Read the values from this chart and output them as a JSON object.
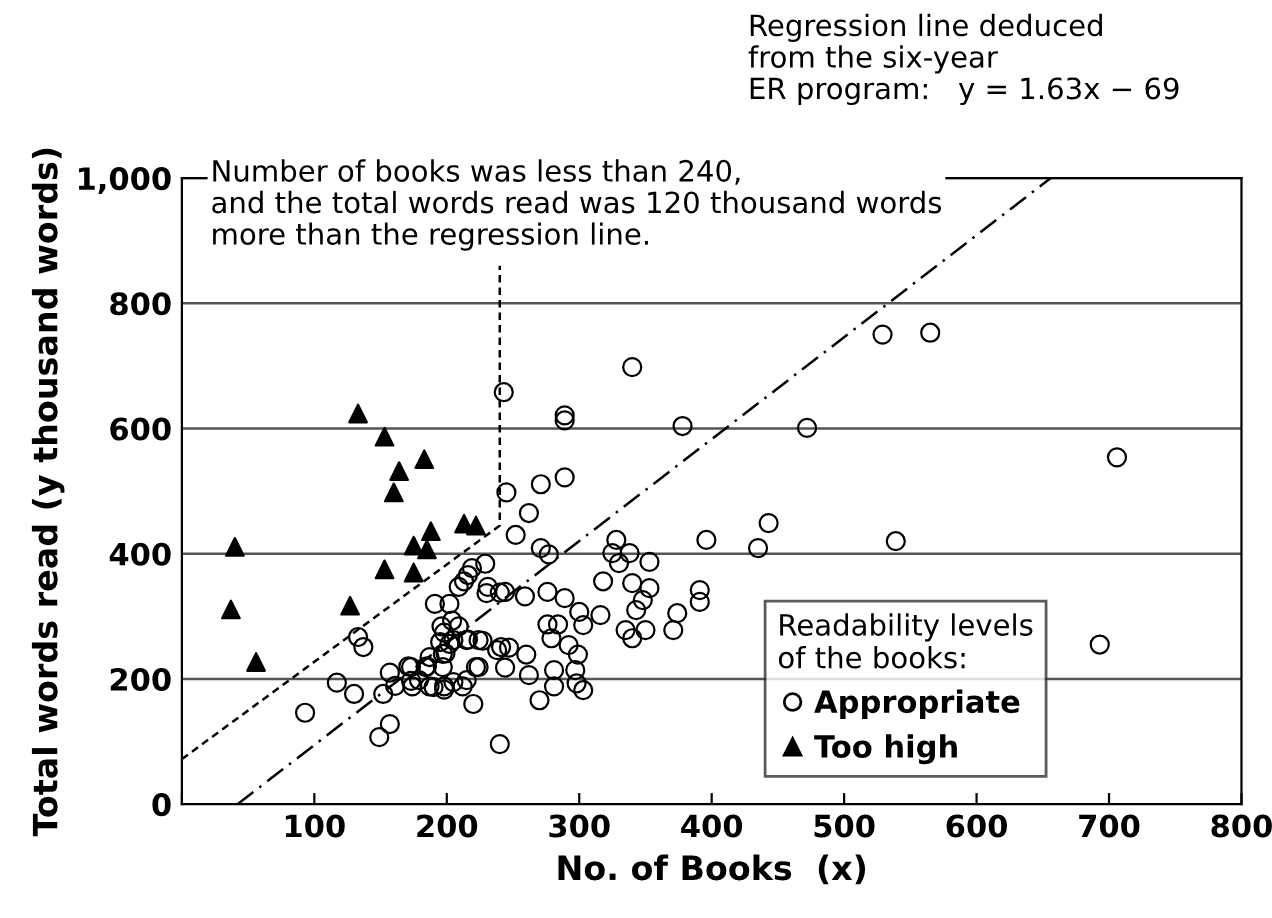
{
  "chart_data": {
    "type": "scatter",
    "xlabel": "No. of Books  (x)",
    "ylabel": "Total words read (y thousand words)",
    "legend_title": "Readability levels\nof the books:",
    "legend": "bottom right",
    "grid": "y",
    "xlim": [
      0,
      800
    ],
    "ylim": [
      0,
      1000
    ],
    "xticks": [
      {
        "value": 0,
        "label": null
      },
      100,
      200,
      300,
      400,
      500,
      600,
      700,
      800
    ],
    "yticks": [
      0,
      200,
      400,
      600,
      800,
      {
        "value": 1000,
        "label": "1,000"
      }
    ],
    "annotations": [
      "Number of books was less than 240,\nand the total words read was 120 thousand words\nmore than the regression line.",
      "Regression line deduced\nfrom the six-year\nER program:   y = 1.63x − 69"
    ],
    "series": [
      {
        "name": "Appropriate",
        "color": "#000000",
        "marker": "circle",
        "x": [
          93,
          117,
          130,
          133,
          137,
          149,
          157,
          152,
          157,
          161,
          173,
          173,
          184,
          190,
          187,
          197,
          198,
          205,
          197,
          195,
          202,
          198,
          204,
          191,
          202,
          209,
          216,
          213,
          219,
          229,
          231,
          227,
          216,
          224,
          220,
          240,
          240,
          241,
          243,
          245,
          340,
          289,
          289,
          378,
          472,
          271,
          289,
          262,
          252,
          271,
          277,
          396,
          443,
          435,
          328,
          325,
          338,
          353,
          330,
          340,
          353,
          348,
          343,
          318,
          391,
          391,
          374,
          371,
          335,
          340,
          350,
          316,
          300,
          303,
          259,
          244,
          230,
          276,
          289,
          276,
          284,
          279,
          292,
          299,
          297,
          303,
          298,
          281,
          281,
          270,
          262,
          260,
          247,
          244,
          238,
          224,
          215,
          205,
          196,
          209,
          199,
          222,
          212,
          198,
          185,
          171,
          187,
          174,
          179,
          215,
          529,
          565,
          706,
          539,
          693
        ],
        "values": [
          146,
          194,
          176,
          267,
          251,
          107,
          128,
          176,
          210,
          189,
          197,
          219,
          219,
          187,
          235,
          219,
          183,
          195,
          240,
          259,
          256,
          274,
          293,
          320,
          320,
          347,
          366,
          356,
          377,
          384,
          347,
          261,
          263,
          219,
          160,
          96,
          338,
          251,
          658,
          498,
          698,
          621,
          613,
          604,
          601,
          511,
          522,
          465,
          430,
          409,
          399,
          422,
          449,
          409,
          422,
          401,
          401,
          387,
          385,
          353,
          345,
          326,
          310,
          356,
          342,
          323,
          305,
          278,
          278,
          265,
          278,
          302,
          307,
          286,
          332,
          339,
          337,
          339,
          329,
          287,
          287,
          265,
          254,
          239,
          214,
          182,
          193,
          214,
          188,
          166,
          206,
          239,
          250,
          218,
          246,
          262,
          262,
          262,
          284,
          284,
          241,
          219,
          188,
          188,
          220,
          220,
          188,
          188,
          198,
          198,
          750,
          753,
          554,
          420,
          255
        ]
      },
      {
        "name": "Too high",
        "color": "#000000",
        "marker": "triangle",
        "x": [
          133,
          153,
          164,
          160,
          183,
          40,
          37,
          56,
          127,
          153,
          175,
          175,
          188,
          185,
          213,
          222
        ],
        "values": [
          624,
          587,
          532,
          498,
          551,
          411,
          311,
          227,
          317,
          375,
          413,
          370,
          436,
          407,
          448,
          445
        ]
      },
      {
        "type": "line",
        "line_style": "dashed",
        "color": "#000000",
        "x": [
          0,
          240,
          240
        ],
        "values": [
          72,
          445,
          860
        ]
      },
      {
        "type": "line",
        "line_style": "dashdot",
        "color": "#000000",
        "x": [
          42,
          656
        ],
        "values": [
          0,
          1000
        ]
      }
    ]
  }
}
